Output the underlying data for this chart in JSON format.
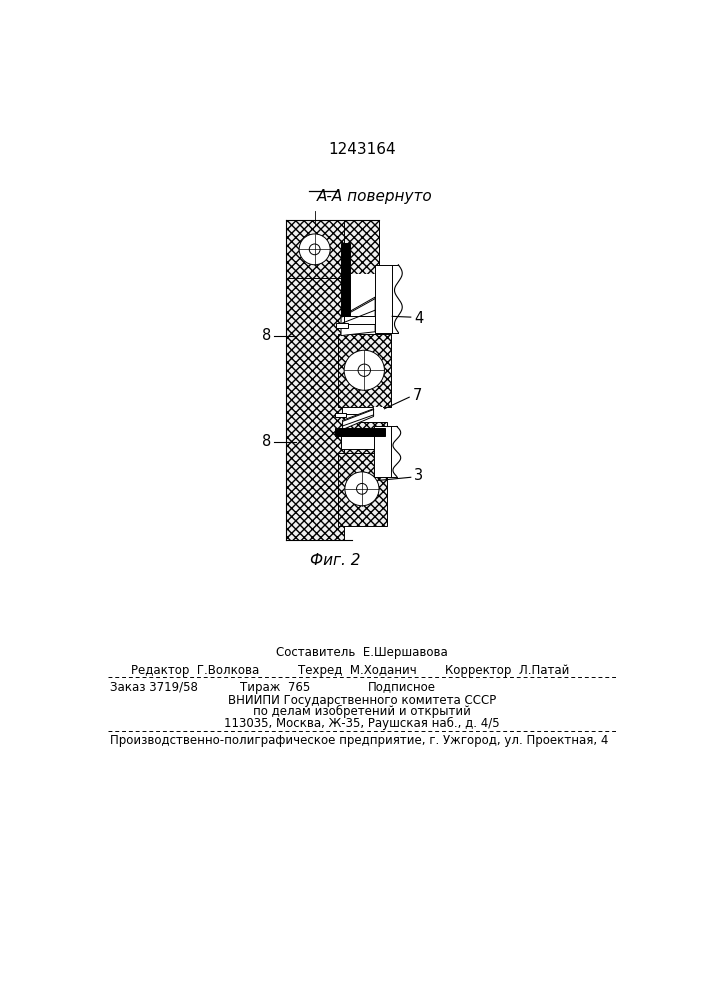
{
  "patent_number": "1243164",
  "section_label": "А-А повернуто",
  "fig_label": "Фиг. 2",
  "bg_color": "#ffffff",
  "labels": {
    "8_top": "8",
    "8_bot": "8",
    "4": "4",
    "7": "7",
    "3": "3"
  },
  "footer": {
    "line1": "Составитель  Е.Шершавова",
    "line2_left": "Редактор  Г.Волкова",
    "line2_mid": "Техред  М.Ходанич",
    "line2_right": "Корректор  Л.Патай",
    "line3_col1": "Заказ 3719/58",
    "line3_col2": "Тираж  765",
    "line3_col3": "Подписное",
    "line4": "ВНИИПИ Государственного комитета СССР",
    "line5": "по делам изобретений и открытий",
    "line6": "113035, Москва, Ж-35, Раушская наб., д. 4/5",
    "line7": "Производственно-полиграфическое предприятие, г. Ужгород, ул. Проектная, 4"
  }
}
